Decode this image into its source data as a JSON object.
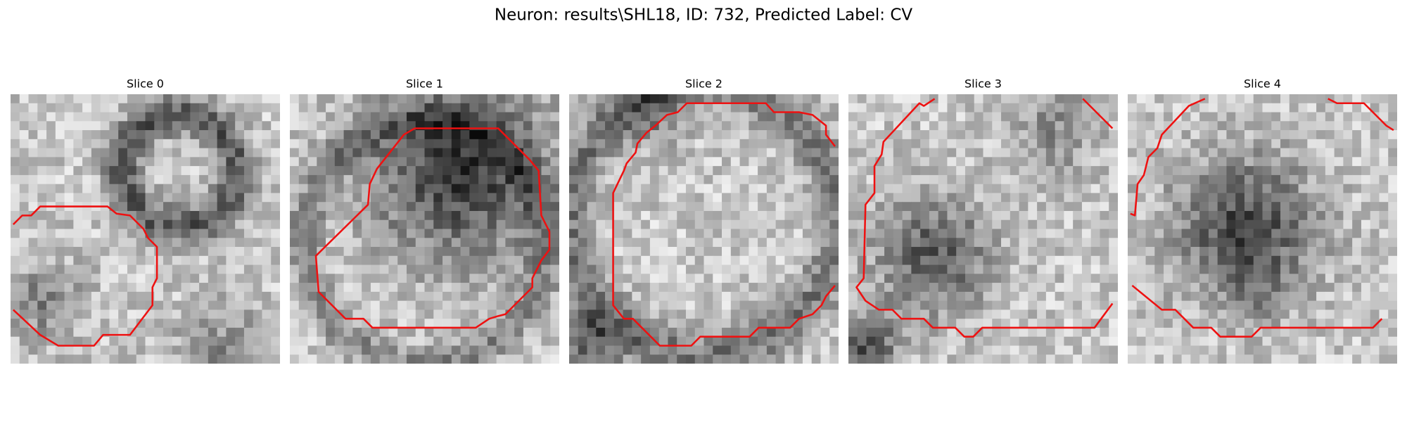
{
  "title": "Neuron: results\\SHL18, ID: 732, Predicted Label: CV",
  "panels": [
    {
      "title": "Slice 0"
    },
    {
      "title": "Slice 1"
    },
    {
      "title": "Slice 2"
    },
    {
      "title": "Slice 3"
    },
    {
      "title": "Slice 4"
    }
  ]
}
